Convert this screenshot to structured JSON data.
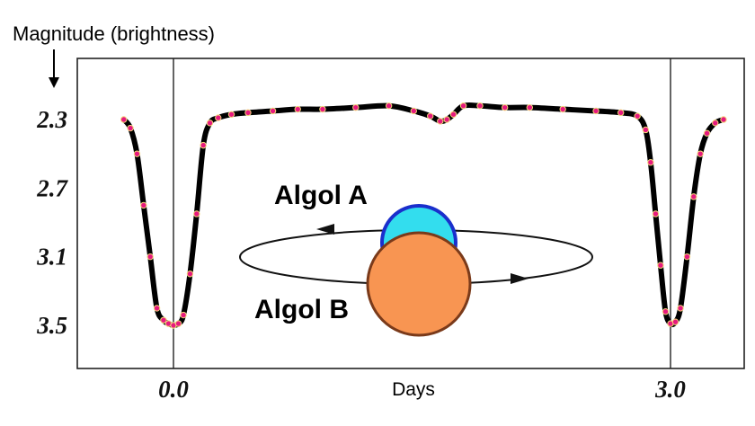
{
  "chart_data": {
    "type": "line",
    "title": "",
    "ylabel": "Magnitude (brightness)",
    "xlabel": "Days",
    "y_inverted": true,
    "ylim": [
      3.5,
      2.3
    ],
    "xlim": [
      -0.45,
      3.45
    ],
    "y_ticks": [
      "2.3",
      "2.7",
      "3.1",
      "3.5"
    ],
    "x_ticks": [
      "0.0",
      "3.0"
    ],
    "reference_lines_x": [
      0.0,
      3.0
    ],
    "grid": false,
    "legend": "none",
    "series": [
      {
        "color": "#000000",
        "marker_color": "#e6197f",
        "x": [
          -0.3,
          -0.26,
          -0.22,
          -0.18,
          -0.14,
          -0.1,
          -0.06,
          -0.03,
          0.0,
          0.03,
          0.06,
          0.1,
          0.14,
          0.18,
          0.22,
          0.27,
          0.35,
          0.45,
          0.6,
          0.75,
          0.9,
          1.1,
          1.3,
          1.45,
          1.55,
          1.61,
          1.65,
          1.69,
          1.75,
          1.85,
          2.0,
          2.15,
          2.35,
          2.55,
          2.7,
          2.8,
          2.85,
          2.88,
          2.91,
          2.94,
          2.97,
          3.0,
          3.03,
          3.06,
          3.1,
          3.14,
          3.18,
          3.22,
          3.27,
          3.32
        ],
        "y": [
          2.3,
          2.35,
          2.5,
          2.8,
          3.1,
          3.4,
          3.47,
          3.49,
          3.5,
          3.49,
          3.44,
          3.2,
          2.85,
          2.45,
          2.32,
          2.29,
          2.27,
          2.26,
          2.25,
          2.24,
          2.24,
          2.23,
          2.22,
          2.25,
          2.28,
          2.31,
          2.3,
          2.27,
          2.22,
          2.22,
          2.23,
          2.23,
          2.24,
          2.25,
          2.26,
          2.28,
          2.36,
          2.55,
          2.85,
          3.15,
          3.42,
          3.49,
          3.48,
          3.4,
          3.1,
          2.75,
          2.5,
          2.38,
          2.32,
          2.3
        ]
      }
    ]
  },
  "diagram": {
    "star_a_label": "Algol A",
    "star_b_label": "Algol B",
    "star_a_color": "#33ddee",
    "star_a_border": "#1a2fcc",
    "star_b_color": "#f89552",
    "star_b_border": "#7a3a1a",
    "orbit_color": "#111111"
  }
}
